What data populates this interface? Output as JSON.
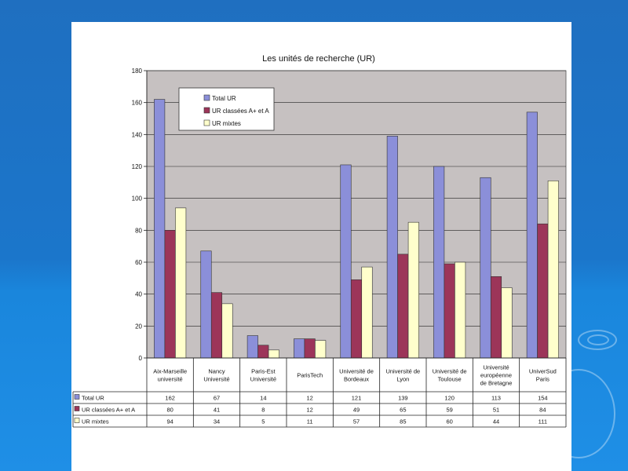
{
  "colors": {
    "background": "#1b76cb",
    "plot_area": "#c6c1c1",
    "total": "#8b8fd9",
    "classees": "#9c3559",
    "mixtes": "#ffffcc"
  },
  "chart_data": {
    "type": "bar",
    "title": "Les unités de recherche (UR)",
    "categories": [
      [
        "Aix-Marseille",
        "université"
      ],
      [
        "Nancy",
        "Université"
      ],
      [
        "Paris-Est",
        "Université"
      ],
      [
        "ParisTech"
      ],
      [
        "Université de",
        "Bordeaux"
      ],
      [
        "Université de",
        "Lyon"
      ],
      [
        "Université de",
        "Toulouse"
      ],
      [
        "Université",
        "européenne",
        "de Bretagne"
      ],
      [
        "UniverSud",
        "Paris"
      ]
    ],
    "series": [
      {
        "name": "Total UR",
        "values": [
          162,
          67,
          14,
          12,
          121,
          139,
          120,
          113,
          154
        ]
      },
      {
        "name": "UR classées A+ et A",
        "values": [
          80,
          41,
          8,
          12,
          49,
          65,
          59,
          51,
          84
        ]
      },
      {
        "name": "UR mixtes",
        "values": [
          94,
          34,
          5,
          11,
          57,
          85,
          60,
          44,
          111
        ]
      }
    ],
    "table_labels": [
      "Total UR",
      "UR classées A+ et A",
      "UR mixtes"
    ],
    "ylim": [
      0,
      180
    ],
    "yticks": [
      0,
      20,
      40,
      60,
      80,
      100,
      120,
      140,
      160,
      180
    ],
    "grid": true,
    "legend_position": "top-left"
  }
}
